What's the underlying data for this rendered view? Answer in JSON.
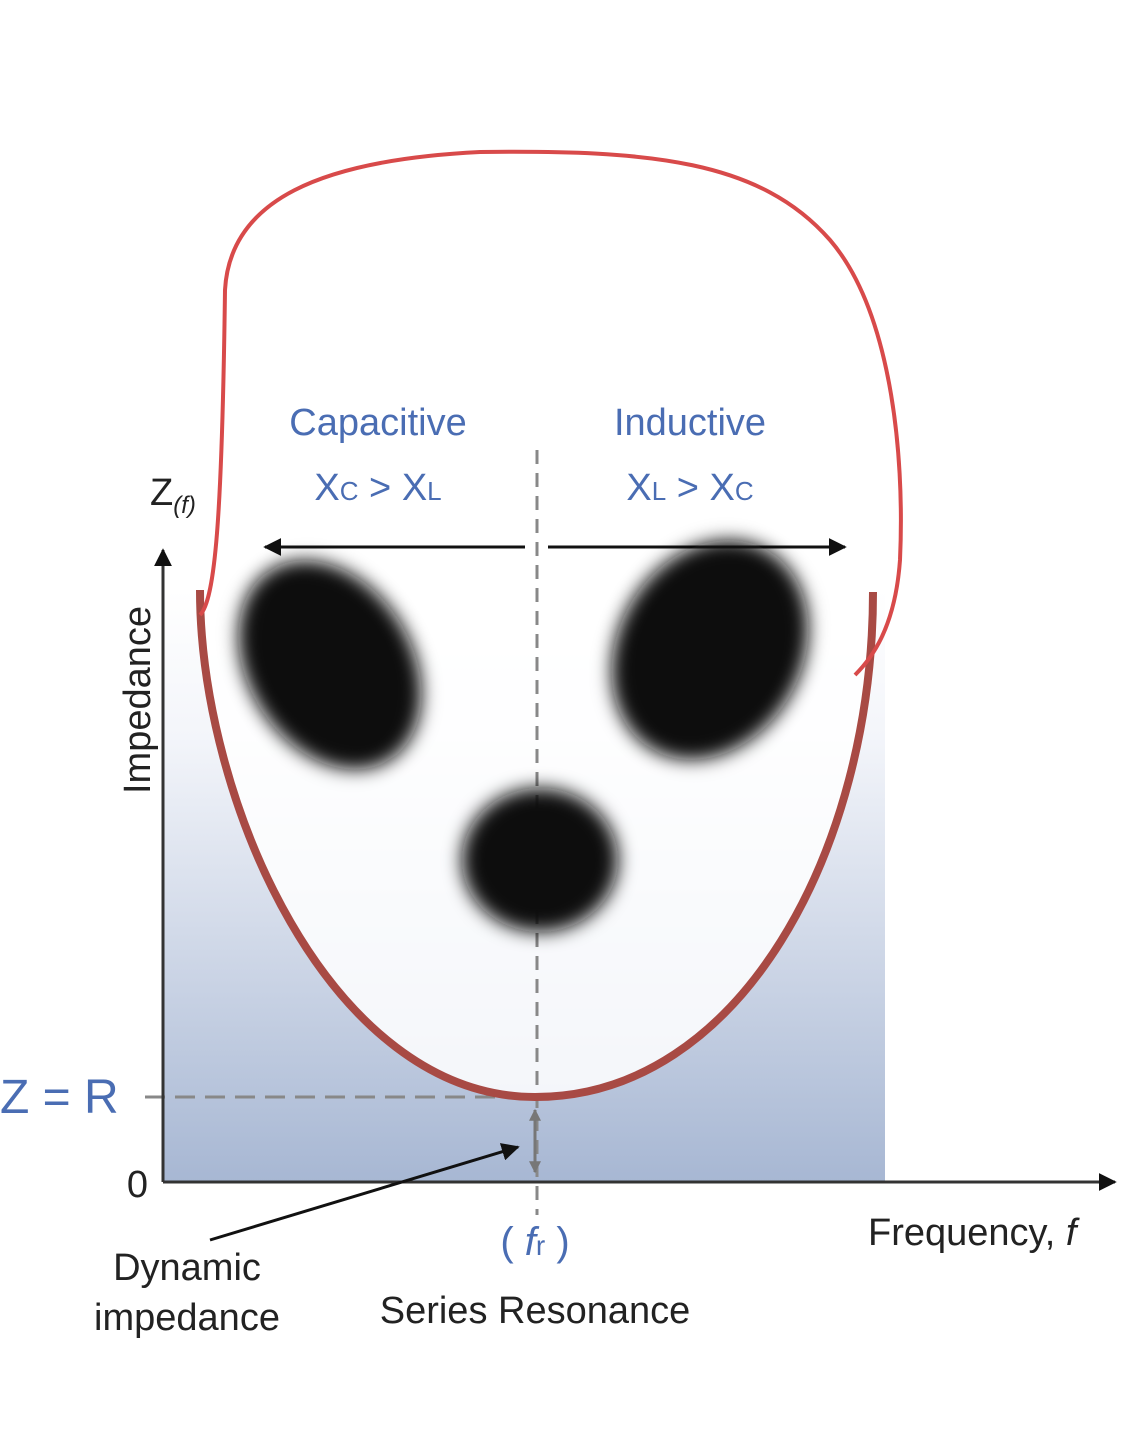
{
  "diagram": {
    "y_axis": {
      "symbol": "Z",
      "symbol_sub": "(f)",
      "label": "Impedance"
    },
    "x_axis": {
      "label": "Frequency, ",
      "label_var": "f",
      "origin": "0"
    },
    "capacitive": {
      "title": "Capacitive",
      "relation": [
        "X",
        "C",
        " > ",
        "X",
        "L"
      ]
    },
    "inductive": {
      "title": "Inductive",
      "relation": [
        "X",
        "L",
        " > ",
        "X",
        "C"
      ]
    },
    "z_equals_r": "Z = R",
    "resonance": {
      "symbol": [
        "( ",
        "f",
        "r",
        " )"
      ],
      "label": "Series Resonance"
    },
    "dynamic": {
      "line1": "Dynamic",
      "line2": "impedance"
    }
  }
}
